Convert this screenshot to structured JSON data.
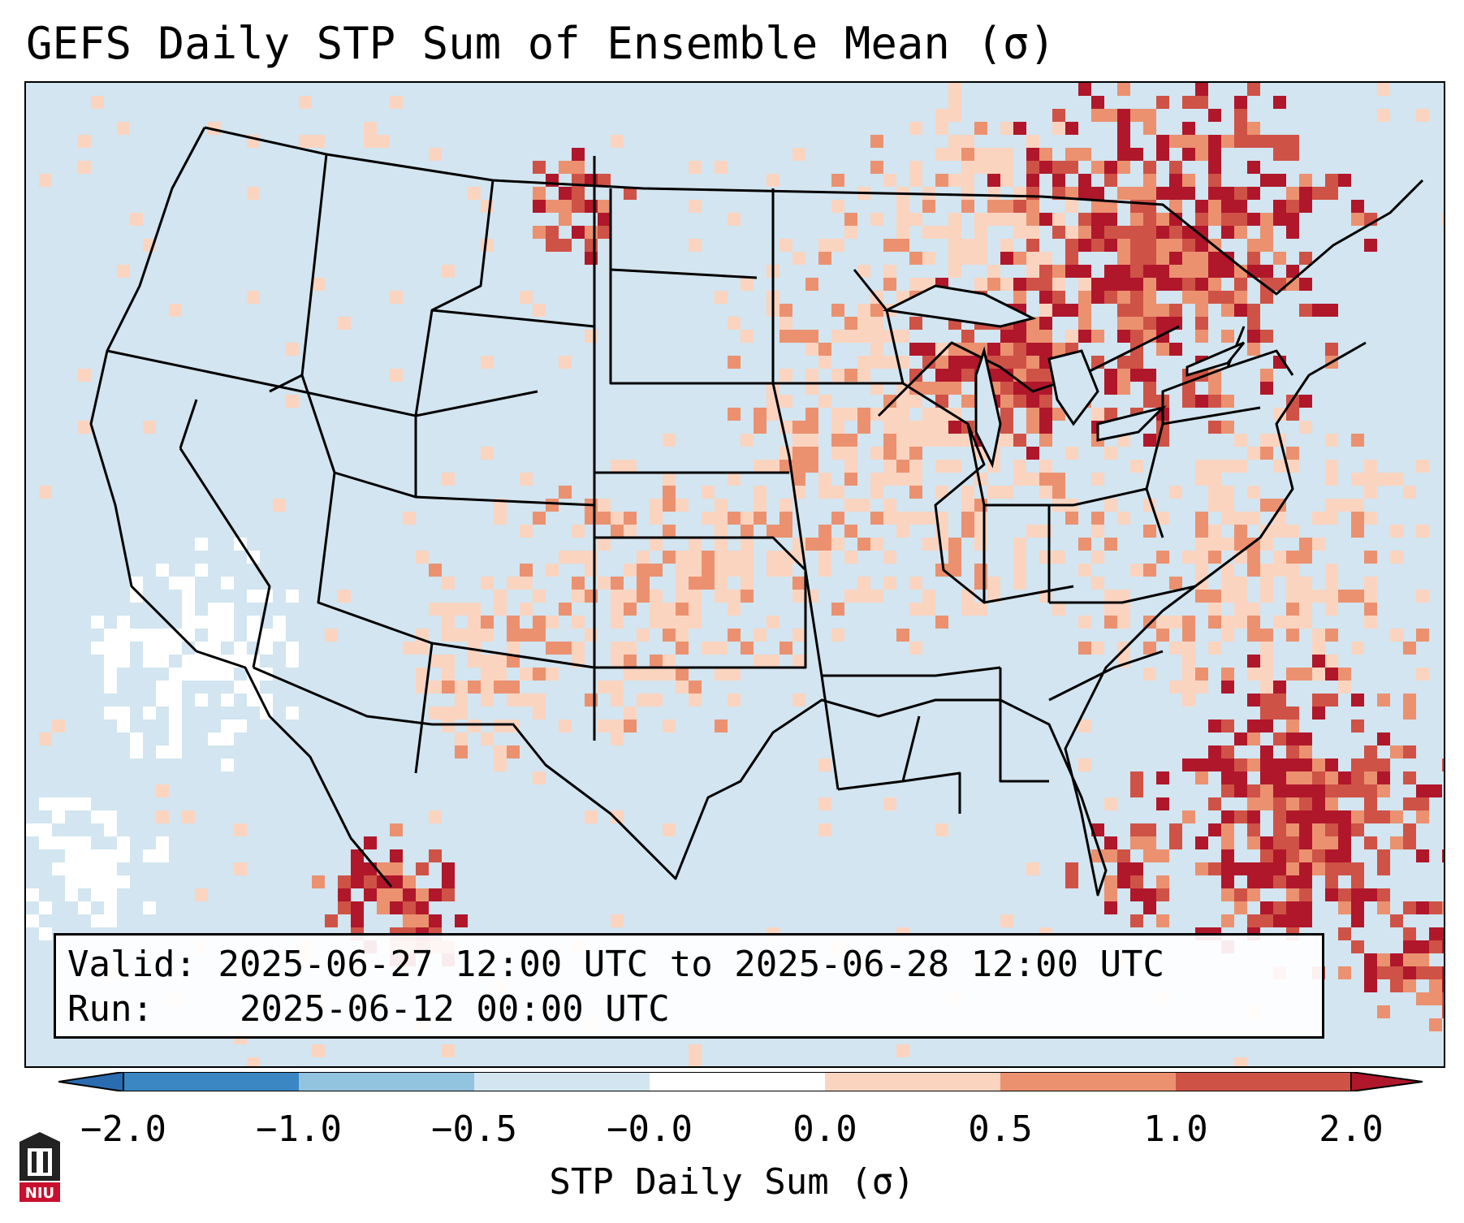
{
  "title": "GEFS Daily STP Sum of Ensemble Mean (σ)",
  "info": {
    "valid_label": "Valid:",
    "valid_value": "2025-06-27 12:00 UTC to 2025-06-28 12:00 UTC",
    "run_label": "Run:",
    "run_value": "2025-06-12 00:00 UTC"
  },
  "colorbar": {
    "label": "STP Daily Sum (σ)",
    "ticks": [
      "−2.0",
      "−1.0",
      "−0.5",
      "−0.0",
      "0.0",
      "0.5",
      "1.0",
      "2.0"
    ],
    "colors": [
      "#3a87c4",
      "#92c3df",
      "#d2e5f0",
      "#ffffff",
      "#fbd4c0",
      "#eb9170",
      "#cf5246"
    ],
    "under_color": "#2a6cb0",
    "over_color": "#b0172b"
  },
  "map": {
    "background_color": "#d2e5f0",
    "region": "Continental United States, Mexico, Caribbean"
  },
  "logo": {
    "text": "NIU"
  }
}
